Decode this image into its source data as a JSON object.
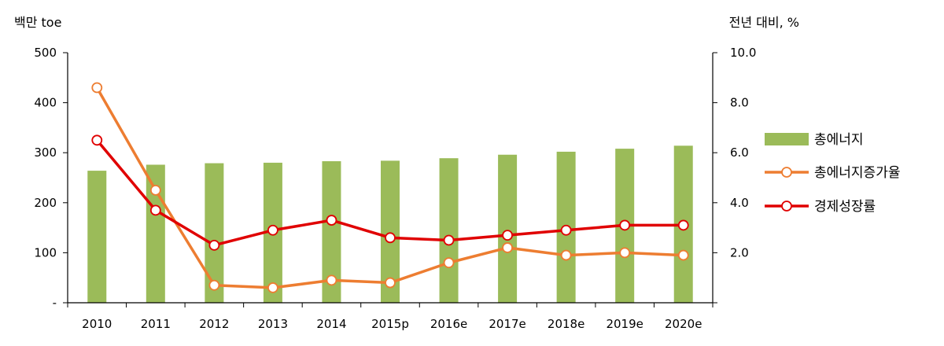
{
  "chart_data": {
    "type": "bar",
    "left_axis_unit": "백만 toe",
    "right_axis_unit": "전년 대비, %",
    "categories": [
      "2010",
      "2011",
      "2012",
      "2013",
      "2014",
      "2015p",
      "2016e",
      "2017e",
      "2018e",
      "2019e",
      "2020e"
    ],
    "left_ylim": [
      0,
      500
    ],
    "left_ticks": [
      "-",
      "100",
      "200",
      "300",
      "400",
      "500"
    ],
    "right_ylim": [
      0,
      10
    ],
    "right_ticks": [
      "",
      "2.0",
      "4.0",
      "6.0",
      "8.0",
      "10.0"
    ],
    "grid": false,
    "legend_position": "right",
    "series": [
      {
        "name": "총에너지",
        "type": "bar",
        "axis": "left",
        "color": "#9bbb59",
        "values": [
          264,
          276,
          279,
          280,
          283,
          284,
          289,
          296,
          302,
          308,
          314
        ]
      },
      {
        "name": "총에너지증가율",
        "type": "line",
        "axis": "right",
        "color": "#ed7d31",
        "values": [
          8.6,
          4.5,
          0.7,
          0.6,
          0.9,
          0.8,
          1.6,
          2.2,
          1.9,
          2.0,
          1.9
        ]
      },
      {
        "name": "경제성장률",
        "type": "line",
        "axis": "right",
        "color": "#e00000",
        "values": [
          6.5,
          3.7,
          2.3,
          2.9,
          3.3,
          2.6,
          2.5,
          2.7,
          2.9,
          3.1,
          3.1
        ]
      }
    ]
  }
}
